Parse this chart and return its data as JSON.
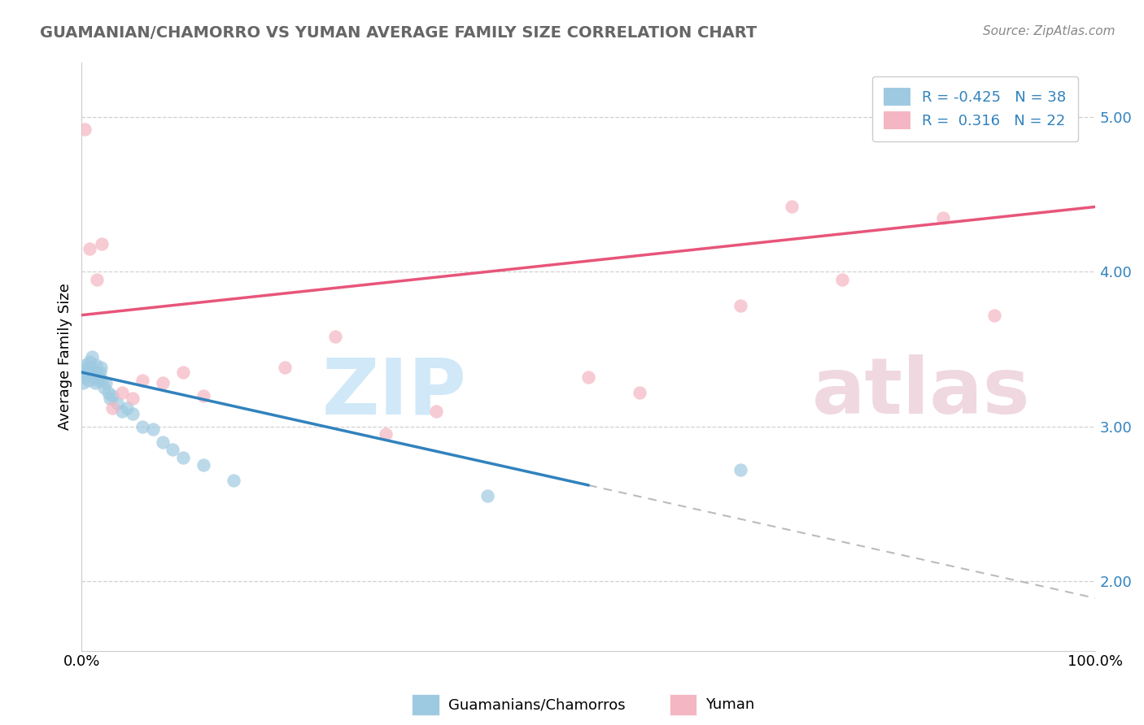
{
  "title": "GUAMANIAN/CHAMORRO VS YUMAN AVERAGE FAMILY SIZE CORRELATION CHART",
  "source": "Source: ZipAtlas.com",
  "ylabel": "Average Family Size",
  "yticks": [
    2.0,
    3.0,
    4.0,
    5.0
  ],
  "blue_label": "Guamanians/Chamorros",
  "pink_label": "Yuman",
  "blue_R": -0.425,
  "blue_N": 38,
  "pink_R": 0.316,
  "pink_N": 22,
  "blue_color": "#9ecae1",
  "pink_color": "#f4b6c2",
  "blue_line_color": "#3182bd",
  "pink_line_color": "#e8557a",
  "ytick_color": "#3182bd",
  "title_color": "#666666",
  "source_color": "#888888",
  "grid_color": "#d0d0d0",
  "spine_color": "#cccccc",
  "dash_color": "#bbbbbb",
  "watermark_zip_color": "#d0e8f8",
  "watermark_atlas_color": "#f0d8e0",
  "blue_scatter_x": [
    0.1,
    0.2,
    0.3,
    0.4,
    0.5,
    0.6,
    0.7,
    0.8,
    0.9,
    1.0,
    1.1,
    1.2,
    1.3,
    1.4,
    1.5,
    1.6,
    1.7,
    1.8,
    1.9,
    2.0,
    2.2,
    2.4,
    2.6,
    2.8,
    3.0,
    3.5,
    4.0,
    4.5,
    5.0,
    6.0,
    7.0,
    8.0,
    9.0,
    10.0,
    12.0,
    15.0,
    40.0,
    65.0
  ],
  "blue_scatter_y": [
    3.28,
    3.32,
    3.35,
    3.4,
    3.38,
    3.35,
    3.3,
    3.42,
    3.38,
    3.45,
    3.32,
    3.35,
    3.28,
    3.4,
    3.35,
    3.3,
    3.32,
    3.35,
    3.38,
    3.3,
    3.25,
    3.28,
    3.22,
    3.18,
    3.2,
    3.15,
    3.1,
    3.12,
    3.08,
    3.0,
    2.98,
    2.9,
    2.85,
    2.8,
    2.75,
    2.65,
    2.55,
    2.72
  ],
  "pink_scatter_x": [
    0.3,
    0.8,
    1.5,
    2.0,
    3.0,
    4.0,
    5.0,
    6.0,
    8.0,
    10.0,
    12.0,
    20.0,
    25.0,
    30.0,
    35.0,
    50.0,
    55.0,
    65.0,
    70.0,
    75.0,
    85.0,
    90.0
  ],
  "pink_scatter_y": [
    4.92,
    4.15,
    3.95,
    4.18,
    3.12,
    3.22,
    3.18,
    3.3,
    3.28,
    3.35,
    3.2,
    3.38,
    3.58,
    2.95,
    3.1,
    3.32,
    3.22,
    3.78,
    4.42,
    3.95,
    4.35,
    3.72
  ],
  "blue_line_x0": 0,
  "blue_line_y0": 3.35,
  "blue_line_x1": 50,
  "blue_line_y1": 2.62,
  "blue_dash_x0": 50,
  "blue_dash_x1": 100,
  "pink_line_x0": 0,
  "pink_line_y0": 3.72,
  "pink_line_x1": 100,
  "pink_line_y1": 4.42,
  "xlim": [
    0,
    100
  ],
  "ylim_bottom": 1.55,
  "ylim_top": 5.35
}
